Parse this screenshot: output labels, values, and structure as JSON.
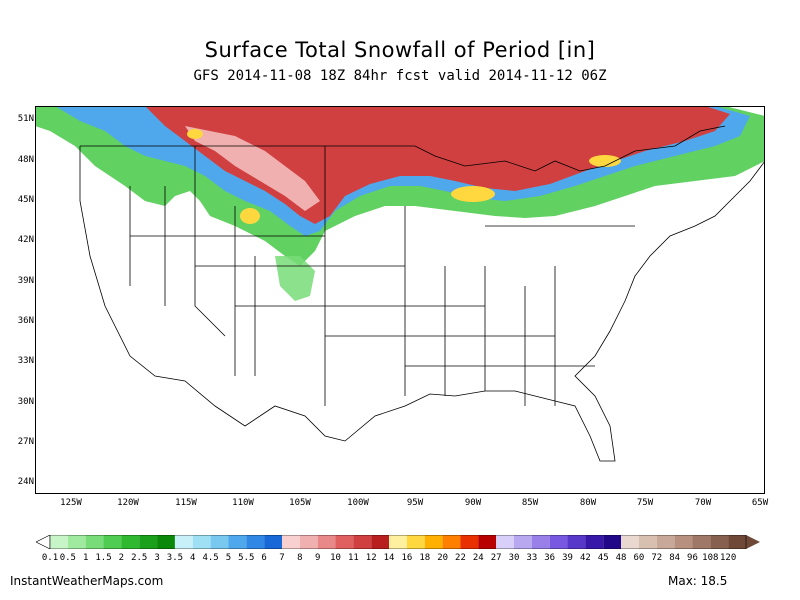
{
  "title": "Surface Total Snowfall of Period [in]",
  "subtitle": "GFS 2014-11-08 18Z 84hr fcst valid 2014-11-12 06Z",
  "lat_labels": [
    "51N",
    "48N",
    "45N",
    "42N",
    "39N",
    "36N",
    "33N",
    "30N",
    "27N",
    "24N"
  ],
  "lon_labels": [
    "125W",
    "120W",
    "115W",
    "110W",
    "105W",
    "100W",
    "95W",
    "90W",
    "85W",
    "80W",
    "75W",
    "70W",
    "65W"
  ],
  "legend": {
    "values": [
      "0.1",
      "0.5",
      "1",
      "1.5",
      "2",
      "2.5",
      "3",
      "3.5",
      "4",
      "4.5",
      "5",
      "5.5",
      "6",
      "7",
      "8",
      "9",
      "10",
      "11",
      "12",
      "14",
      "16",
      "18",
      "20",
      "22",
      "24",
      "27",
      "30",
      "33",
      "36",
      "39",
      "42",
      "45",
      "48",
      "60",
      "72",
      "84",
      "96",
      "108",
      "120"
    ],
    "colors": [
      "#c8f5c8",
      "#a0eaa0",
      "#78dc78",
      "#50cc50",
      "#30b830",
      "#1aa01a",
      "#0a880a",
      "#c8f0f8",
      "#a0e0f4",
      "#78c8f0",
      "#50a8ec",
      "#3088e4",
      "#1868d8",
      "#f8d0d0",
      "#f0b0b0",
      "#e88888",
      "#e06060",
      "#d04040",
      "#b82020",
      "#fff0a0",
      "#ffd840",
      "#ffb000",
      "#ff8000",
      "#e83000",
      "#b80000",
      "#d8d0f8",
      "#b8a8f0",
      "#9880e8",
      "#7858e0",
      "#5838c8",
      "#3818a8",
      "#200888",
      "#e8d8d0",
      "#d8c0b0",
      "#c8a898",
      "#b89080",
      "#a07868",
      "#886050",
      "#704838"
    ]
  },
  "footer_left": "InstantWeatherMaps.com",
  "footer_right": "Max:  18.5",
  "map": {
    "region": "Continental United States",
    "projection": "lat-lon",
    "lat_range": [
      23,
      52
    ],
    "lon_range": [
      -128,
      -65
    ]
  }
}
